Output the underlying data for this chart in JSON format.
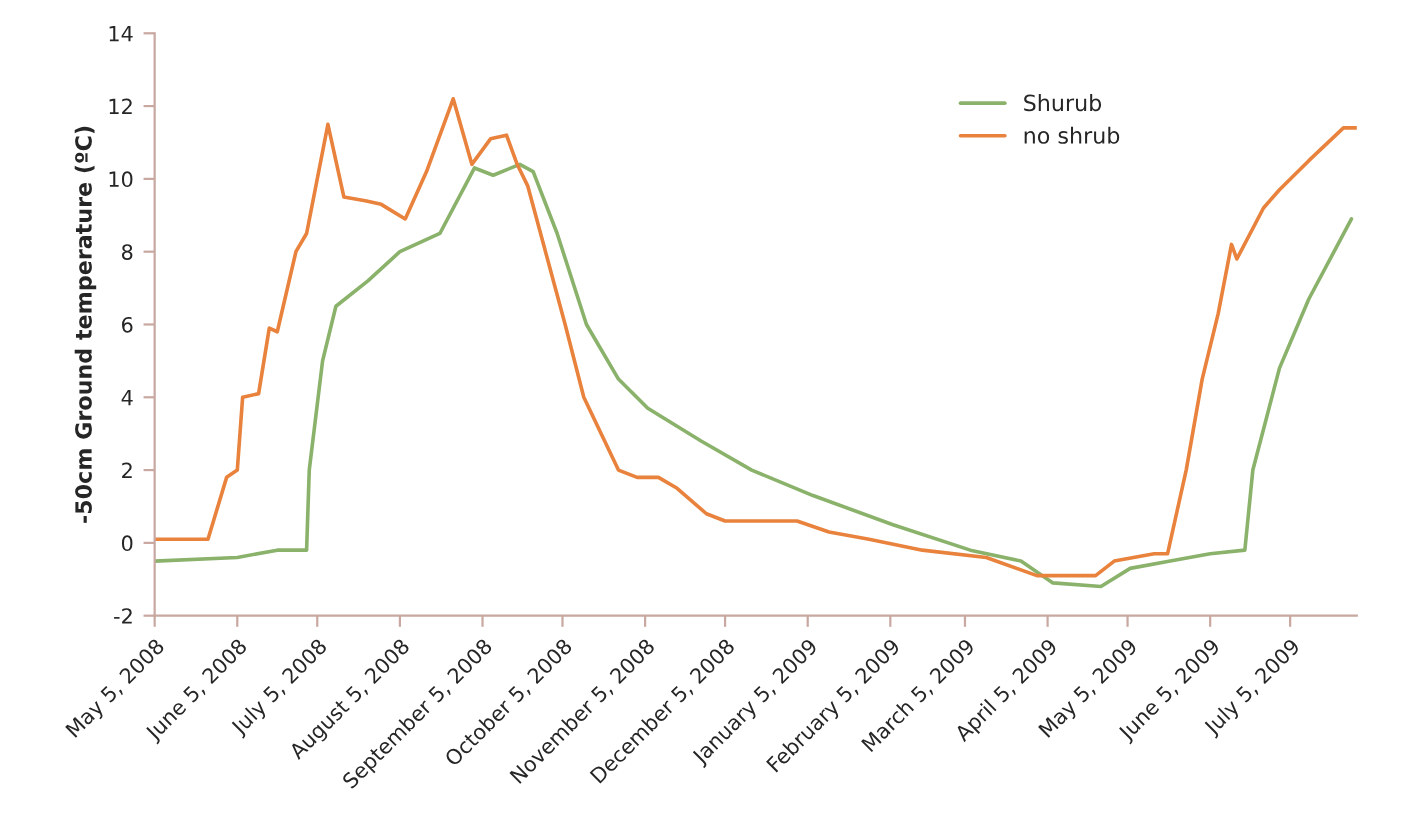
{
  "chart_data": {
    "type": "line",
    "ylabel": "-50cm Ground temperature (ºC)",
    "xlim": [
      "2008-05-05",
      "2009-07-30"
    ],
    "ylim": [
      -2,
      14
    ],
    "yticks": [
      -2,
      0,
      2,
      4,
      6,
      8,
      10,
      12,
      14
    ],
    "xticks": [
      {
        "value": "2008-05-05",
        "label": "May 5, 2008"
      },
      {
        "value": "2008-06-05",
        "label": "June 5, 2008"
      },
      {
        "value": "2008-07-05",
        "label": "July 5, 2008"
      },
      {
        "value": "2008-08-05",
        "label": "August 5, 2008"
      },
      {
        "value": "2008-09-05",
        "label": "September 5, 2008"
      },
      {
        "value": "2008-10-05",
        "label": "October 5, 2008"
      },
      {
        "value": "2008-11-05",
        "label": "November 5, 2008"
      },
      {
        "value": "2008-12-05",
        "label": "December 5, 2008"
      },
      {
        "value": "2009-01-05",
        "label": "January 5, 2009"
      },
      {
        "value": "2009-02-05",
        "label": "February 5, 2009"
      },
      {
        "value": "2009-03-05",
        "label": "March 5, 2009"
      },
      {
        "value": "2009-04-05",
        "label": "April 5, 2009"
      },
      {
        "value": "2009-05-05",
        "label": "May 5, 2009"
      },
      {
        "value": "2009-06-05",
        "label": "June 5, 2009"
      },
      {
        "value": "2009-07-05",
        "label": "July 5, 2009"
      }
    ],
    "grid": false,
    "legend": "top right",
    "marker": "none",
    "line_style": "solid",
    "series": [
      {
        "name": "Shurub",
        "color": "#8ab26b",
        "x": [
          "2008-05-05",
          "2008-06-05",
          "2008-06-20",
          "2008-07-01",
          "2008-07-02",
          "2008-07-07",
          "2008-07-12",
          "2008-07-24",
          "2008-08-05",
          "2008-08-20",
          "2008-09-02",
          "2008-09-09",
          "2008-09-19",
          "2008-09-24",
          "2008-10-03",
          "2008-10-14",
          "2008-10-26",
          "2008-11-06",
          "2008-11-26",
          "2008-12-15",
          "2009-01-07",
          "2009-02-06",
          "2009-03-07",
          "2009-03-26",
          "2009-04-07",
          "2009-04-25",
          "2009-05-06",
          "2009-05-21",
          "2009-06-05",
          "2009-06-18",
          "2009-06-21",
          "2009-07-01",
          "2009-07-12",
          "2009-07-28"
        ],
        "values": [
          -0.5,
          -0.4,
          -0.2,
          -0.2,
          2,
          5,
          6.5,
          7.2,
          8,
          8.5,
          10.3,
          10.1,
          10.4,
          10.2,
          8.5,
          6,
          4.5,
          3.7,
          2.8,
          2,
          1.3,
          0.5,
          -0.2,
          -0.5,
          -1.1,
          -1.2,
          -0.7,
          -0.5,
          -0.3,
          -0.2,
          2,
          4.8,
          6.7,
          8.9
        ]
      },
      {
        "name": "no shrub",
        "color": "#e8823c",
        "x": [
          "2008-05-05",
          "2008-05-25",
          "2008-06-01",
          "2008-06-05",
          "2008-06-07",
          "2008-06-13",
          "2008-06-17",
          "2008-06-20",
          "2008-06-27",
          "2008-07-01",
          "2008-07-09",
          "2008-07-15",
          "2008-07-23",
          "2008-07-29",
          "2008-08-07",
          "2008-08-15",
          "2008-08-25",
          "2008-09-01",
          "2008-09-08",
          "2008-09-14",
          "2008-09-18",
          "2008-09-22",
          "2008-10-06",
          "2008-10-13",
          "2008-10-26",
          "2008-11-02",
          "2008-11-10",
          "2008-11-17",
          "2008-11-28",
          "2008-12-05",
          "2009-01-01",
          "2009-01-13",
          "2009-01-28",
          "2009-02-17",
          "2009-03-13",
          "2009-04-01",
          "2009-04-23",
          "2009-04-30",
          "2009-05-15",
          "2009-05-20",
          "2009-05-27",
          "2009-06-02",
          "2009-06-08",
          "2009-06-13",
          "2009-06-15",
          "2009-06-25",
          "2009-07-01",
          "2009-07-12",
          "2009-07-25",
          "2009-07-30"
        ],
        "values": [
          0.1,
          0.1,
          1.8,
          2,
          4,
          4.1,
          5.9,
          5.8,
          8,
          8.5,
          11.5,
          9.5,
          9.4,
          9.3,
          8.9,
          10.2,
          12.2,
          10.4,
          11.1,
          11.2,
          10.4,
          9.8,
          6,
          4,
          2,
          1.8,
          1.8,
          1.5,
          0.8,
          0.6,
          0.6,
          0.3,
          0.1,
          -0.2,
          -0.4,
          -0.9,
          -0.9,
          -0.5,
          -0.3,
          -0.3,
          2,
          4.5,
          6.3,
          8.2,
          7.8,
          9.2,
          9.7,
          10.5,
          11.4,
          11.4
        ]
      }
    ]
  }
}
